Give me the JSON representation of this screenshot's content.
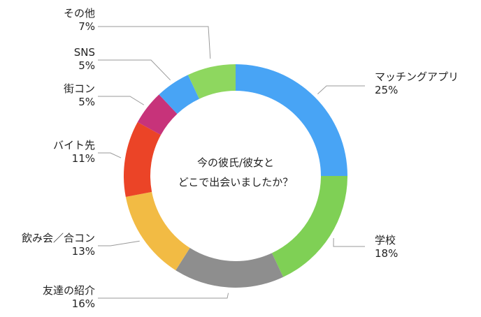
{
  "chart_data": {
    "type": "pie",
    "donut": true,
    "title": "今の彼氏/彼女と どこで出会いましたか？",
    "title_lines": [
      "今の彼氏/彼女と",
      "どこで出会いましたか？"
    ],
    "slices": [
      {
        "label": "マッチングアプリ",
        "value": 25,
        "pct_label": "25%",
        "color": "#48a4f5"
      },
      {
        "label": "学校",
        "value": 18,
        "pct_label": "18%",
        "color": "#7fd055"
      },
      {
        "label": "友達の紹介",
        "value": 16,
        "pct_label": "16%",
        "color": "#8e8e8e"
      },
      {
        "label": "飲み会／合コン",
        "value": 13,
        "pct_label": "13%",
        "color": "#f2bb44"
      },
      {
        "label": "バイト先",
        "value": 11,
        "pct_label": "11%",
        "color": "#eb4427"
      },
      {
        "label": "街コン",
        "value": 5,
        "pct_label": "5%",
        "color": "#c7337a"
      },
      {
        "label": "SNS",
        "value": 5,
        "pct_label": "5%",
        "color": "#48a4f5"
      },
      {
        "label": "その他",
        "value": 7,
        "pct_label": "7%",
        "color": "#8ed75f"
      }
    ]
  }
}
